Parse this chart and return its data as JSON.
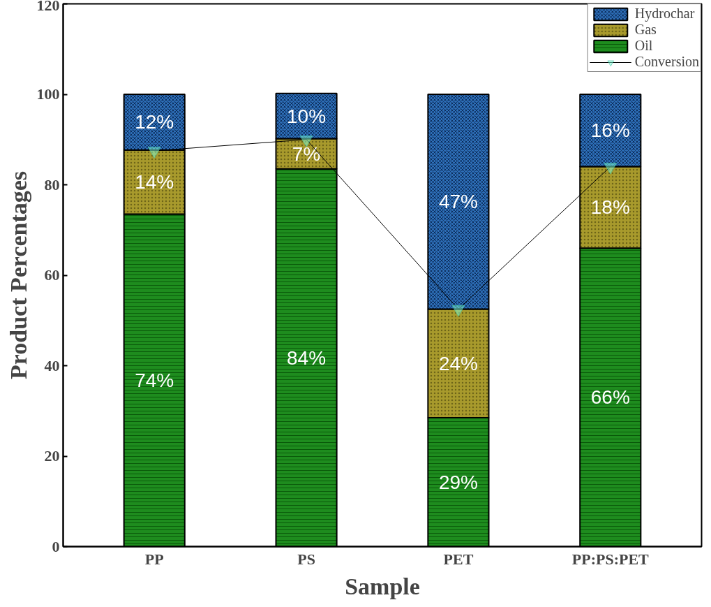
{
  "chart_data": {
    "type": "bar",
    "stacked": true,
    "xlabel": "Sample",
    "ylabel": "Product Percentages",
    "categories": [
      "PP",
      "PS",
      "PET",
      "PP:PS:PET"
    ],
    "ylim": [
      0,
      120
    ],
    "yticks": [
      0,
      20,
      40,
      60,
      80,
      100,
      120
    ],
    "grid": false,
    "legend": "top right",
    "series": [
      {
        "name": "Oil",
        "color": "#1e8c1e",
        "values": [
          73.5,
          83.5,
          28.5,
          66
        ],
        "value_labels": [
          "74%",
          "84%",
          "29%",
          "66%"
        ]
      },
      {
        "name": "Gas",
        "color": "#a89a2c",
        "values": [
          14.2,
          6.7,
          24,
          18
        ],
        "value_labels": [
          "14%",
          "7%",
          "24%",
          "18%"
        ]
      },
      {
        "name": "Hydrochar",
        "color": "#2e6fb8",
        "values": [
          12.3,
          10,
          47.5,
          16
        ],
        "value_labels": [
          "12%",
          "10%",
          "47%",
          "16%"
        ]
      },
      {
        "name": "Conversion",
        "type": "line",
        "color": "#80ffd8",
        "marker": "triangle",
        "values": [
          87.5,
          90,
          52.5,
          84
        ]
      }
    ]
  }
}
